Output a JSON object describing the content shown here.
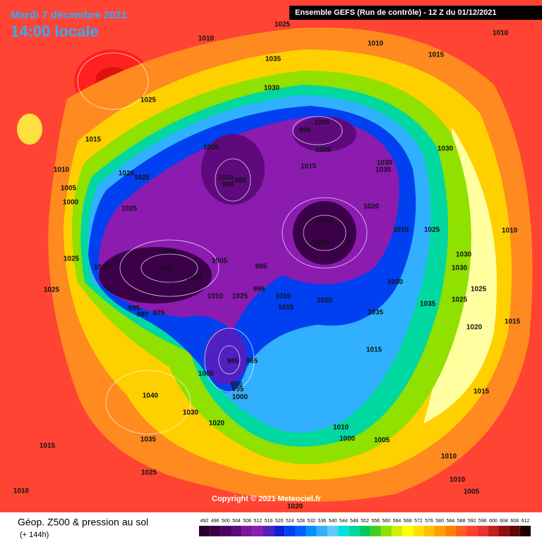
{
  "header": {
    "date": "Mardi 7 décembre 2021",
    "time": "14:00 locale",
    "run": "Ensemble GEFS  (Run de contrôle)  -  12 Z du 01/12/2021"
  },
  "copyright": "Copyright © 2021 Meteociel.fr",
  "footer": {
    "title": "Géop. Z500 & pression au sol",
    "subtitle": "(+ 144h)"
  },
  "isobar_labels": [
    1025,
    1010,
    1035,
    1010,
    1015,
    1010,
    1030,
    1025,
    1015,
    1010,
    1005,
    1000,
    1020,
    1025,
    1025,
    1005,
    1000,
    990,
    1005,
    1030,
    1035,
    1015,
    1000,
    990,
    985,
    1020,
    1030,
    1025,
    1010,
    1010,
    1000,
    1000,
    1030,
    1030,
    995,
    990,
    1000,
    1020,
    1025,
    1025,
    1005,
    995,
    995,
    1025,
    1010,
    1010,
    1015,
    1020,
    1030,
    1035,
    1035,
    1025,
    1025,
    1020,
    1015,
    1015,
    995,
    990,
    975,
    985,
    965,
    1005,
    990,
    995,
    1000,
    1040,
    1030,
    1020,
    1035,
    1015,
    1025,
    1010,
    1000,
    1005,
    1015,
    1010,
    1010,
    1005,
    1010,
    1020
  ],
  "scale": {
    "labels": [
      492,
      496,
      500,
      504,
      508,
      512,
      516,
      520,
      524,
      528,
      532,
      536,
      540,
      544,
      548,
      552,
      556,
      560,
      564,
      568,
      572,
      576,
      580,
      584,
      588,
      592,
      596,
      600,
      604,
      608,
      612
    ],
    "colors": [
      "#2a0030",
      "#3a0048",
      "#4b0062",
      "#5e0a7d",
      "#7a1a98",
      "#8c1bb0",
      "#5020c0",
      "#1020d0",
      "#0040f0",
      "#0060ff",
      "#0090ff",
      "#30b0ff",
      "#60c8ff",
      "#00e0e0",
      "#00d8a0",
      "#00c860",
      "#40d020",
      "#90e000",
      "#d0f000",
      "#ffff00",
      "#ffe000",
      "#ffc000",
      "#ffa000",
      "#ff8000",
      "#ff6020",
      "#ff4030",
      "#f03030",
      "#c02020",
      "#901010",
      "#600808",
      "#200000"
    ]
  }
}
